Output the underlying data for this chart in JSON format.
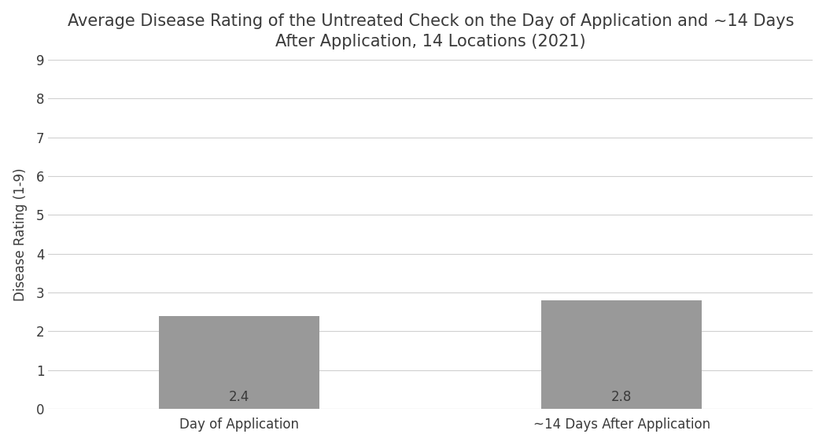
{
  "title": "Average Disease Rating of the Untreated Check on the Day of Application and ~14 Days\nAfter Application, 14 Locations (2021)",
  "categories": [
    "Day of Application",
    "~14 Days After Application"
  ],
  "values": [
    2.4,
    2.8
  ],
  "bar_color": "#999999",
  "ylabel": "Disease Rating (1-9)",
  "ylim": [
    0,
    9
  ],
  "yticks": [
    0,
    1,
    2,
    3,
    4,
    5,
    6,
    7,
    8,
    9
  ],
  "bar_width": 0.42,
  "label_fontsize": 12,
  "title_fontsize": 15,
  "tick_fontsize": 12,
  "ylabel_fontsize": 12,
  "value_label_fontsize": 12,
  "background_color": "#ffffff",
  "grid_color": "#d0d0d0",
  "text_color": "#3a3a3a"
}
